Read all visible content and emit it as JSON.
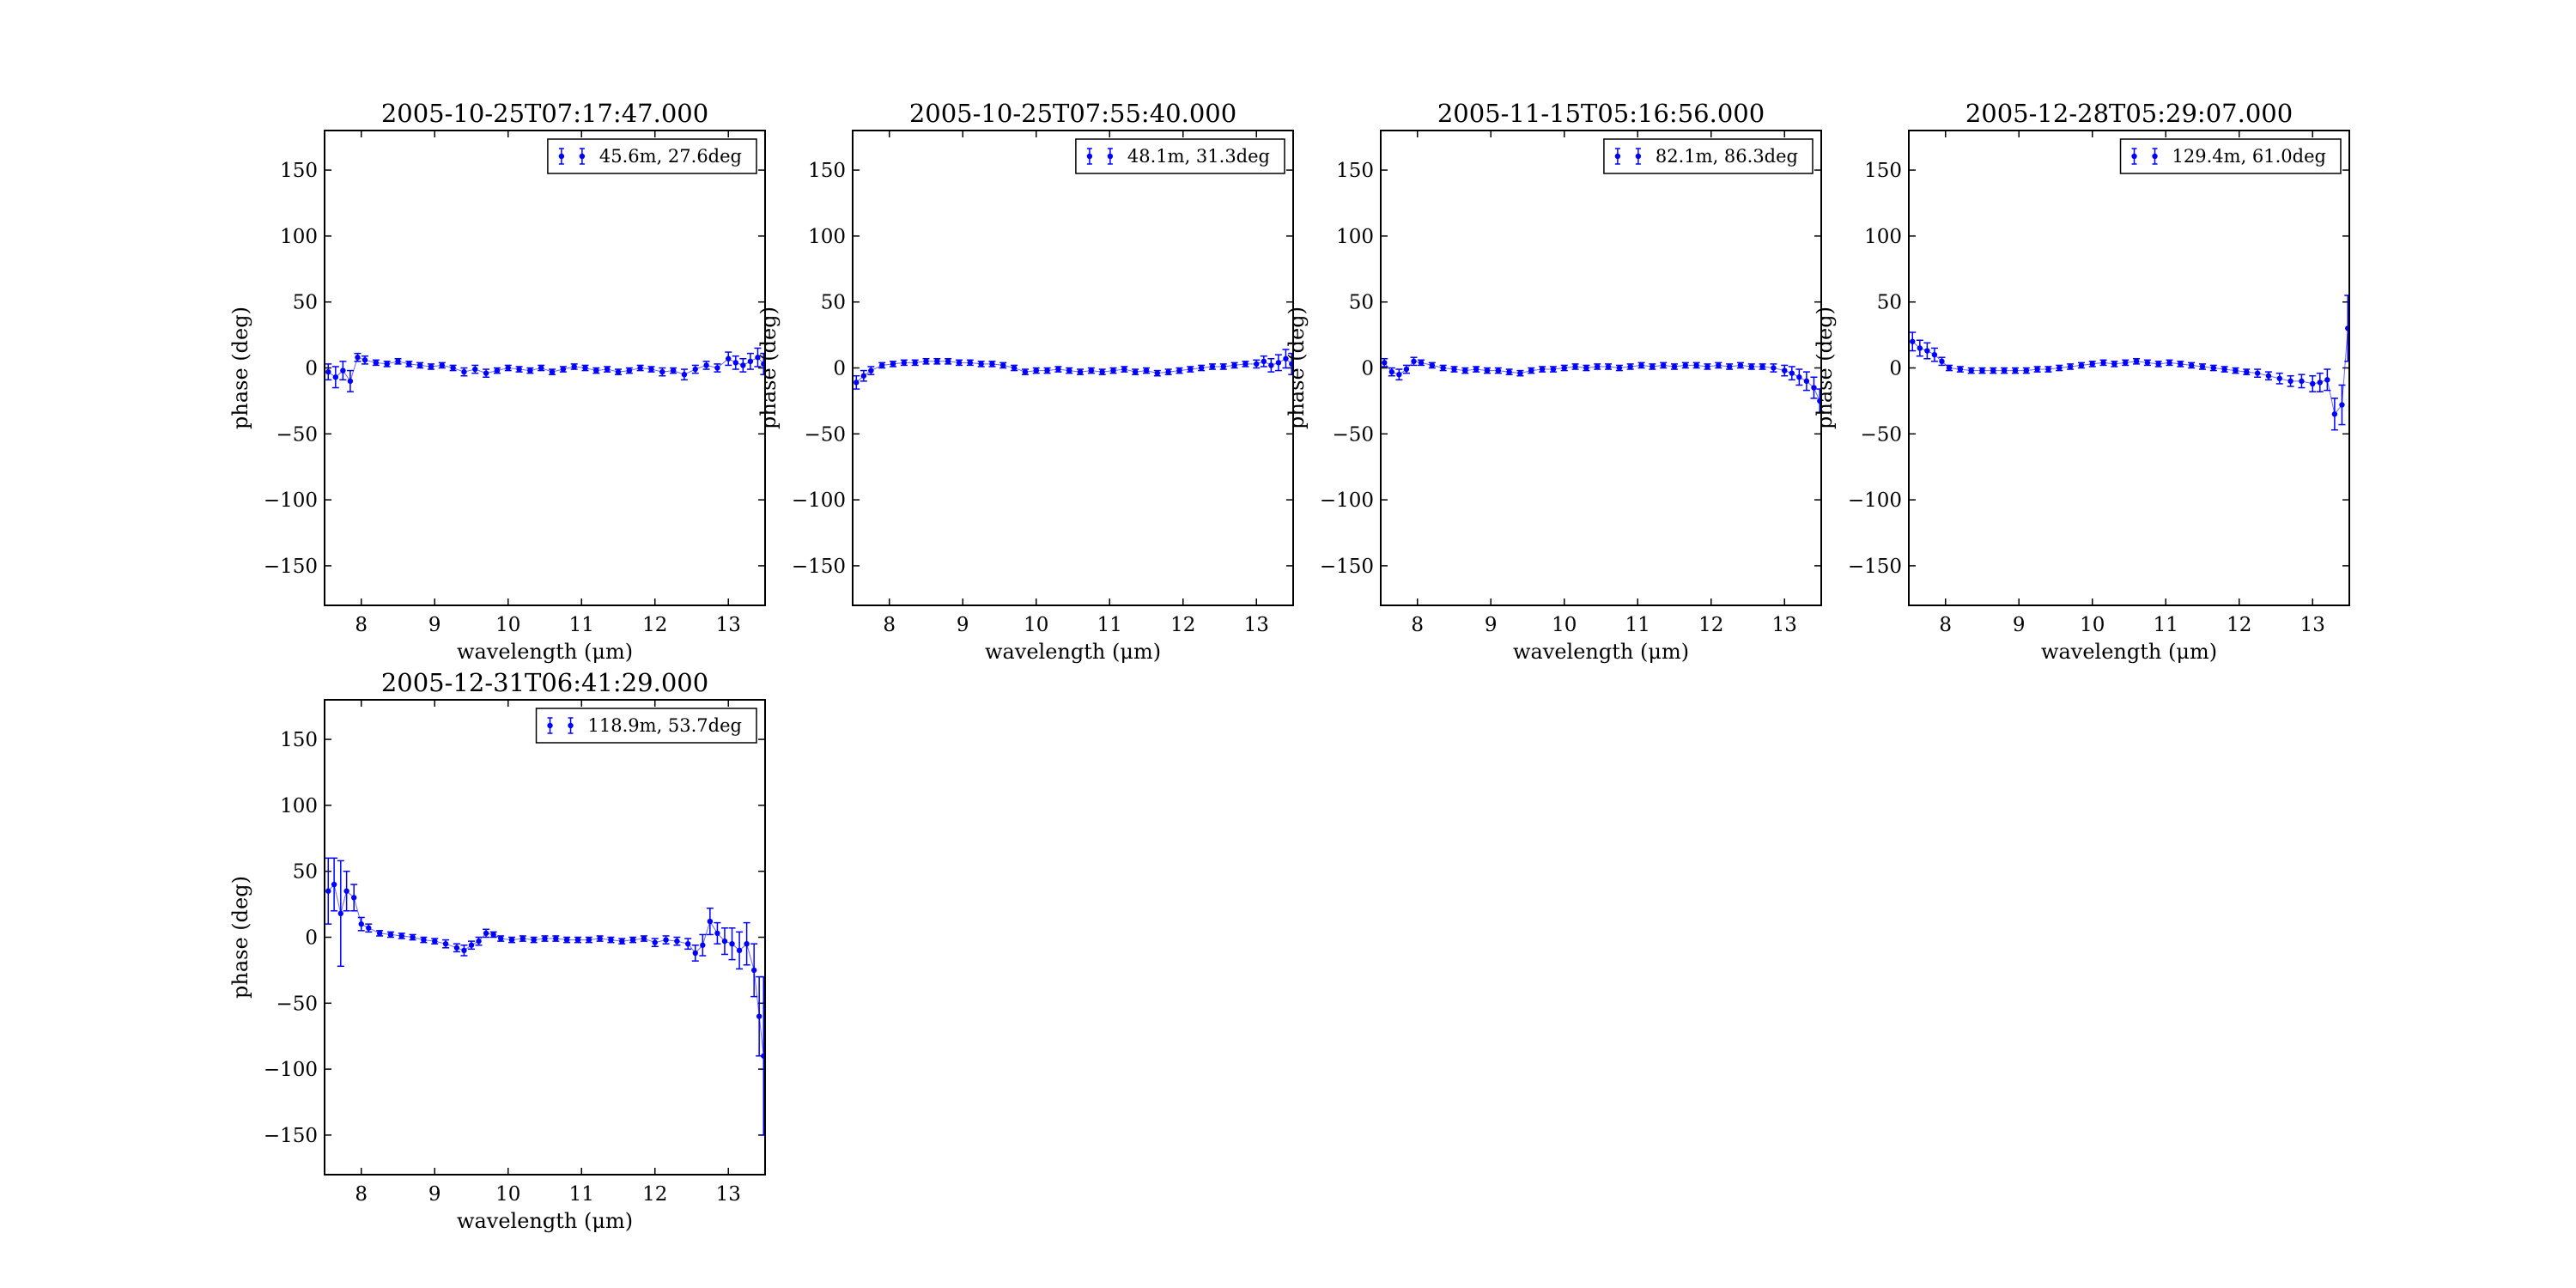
{
  "figure": {
    "marker_color": "#0000ff",
    "background": "#ffffff"
  },
  "chart_data": [
    {
      "type": "scatter",
      "title": "2005-10-25T07:17:47.000",
      "xlabel": "wavelength (μm)",
      "ylabel": "phase (deg)",
      "xlim": [
        7.5,
        13.5
      ],
      "ylim": [
        -180,
        180
      ],
      "xticks": [
        8,
        9,
        10,
        11,
        12,
        13
      ],
      "yticks": [
        150,
        100,
        50,
        0,
        -50,
        -100,
        -150
      ],
      "grid": false,
      "legend_position": "top-right",
      "series": [
        {
          "name": "45.6m, 27.6deg",
          "x": [
            7.55,
            7.65,
            7.75,
            7.85,
            7.95,
            8.05,
            8.2,
            8.35,
            8.5,
            8.65,
            8.8,
            8.95,
            9.1,
            9.25,
            9.4,
            9.55,
            9.7,
            9.85,
            10.0,
            10.15,
            10.3,
            10.45,
            10.6,
            10.75,
            10.9,
            11.05,
            11.2,
            11.35,
            11.5,
            11.65,
            11.8,
            11.95,
            12.1,
            12.25,
            12.4,
            12.55,
            12.7,
            12.85,
            13.0,
            13.1,
            13.2,
            13.3,
            13.4,
            13.48
          ],
          "y": [
            -3,
            -7,
            -2,
            -10,
            8,
            6,
            4,
            3,
            5,
            3,
            2,
            1,
            2,
            0,
            -3,
            -1,
            -4,
            -2,
            0,
            -1,
            -2,
            0,
            -3,
            -1,
            1,
            0,
            -2,
            -1,
            -3,
            -2,
            0,
            -1,
            -3,
            -2,
            -5,
            -1,
            2,
            0,
            7,
            4,
            2,
            5,
            8,
            3
          ],
          "yerr": [
            6,
            8,
            7,
            8,
            3,
            3,
            2,
            2,
            2,
            2,
            2,
            2,
            2,
            2,
            3,
            3,
            3,
            2,
            2,
            2,
            2,
            2,
            2,
            2,
            2,
            2,
            2,
            2,
            2,
            2,
            2,
            2,
            3,
            2,
            4,
            3,
            3,
            3,
            5,
            5,
            5,
            6,
            7,
            8
          ]
        }
      ]
    },
    {
      "type": "scatter",
      "title": "2005-10-25T07:55:40.000",
      "xlabel": "wavelength (μm)",
      "ylabel": "phase (deg)",
      "xlim": [
        7.5,
        13.5
      ],
      "ylim": [
        -180,
        180
      ],
      "xticks": [
        8,
        9,
        10,
        11,
        12,
        13
      ],
      "yticks": [
        150,
        100,
        50,
        0,
        -50,
        -100,
        -150
      ],
      "grid": false,
      "legend_position": "top-right",
      "series": [
        {
          "name": "48.1m, 31.3deg",
          "x": [
            7.55,
            7.65,
            7.75,
            7.9,
            8.05,
            8.2,
            8.35,
            8.5,
            8.65,
            8.8,
            8.95,
            9.1,
            9.25,
            9.4,
            9.55,
            9.7,
            9.85,
            10.0,
            10.15,
            10.3,
            10.45,
            10.6,
            10.75,
            10.9,
            11.05,
            11.2,
            11.35,
            11.5,
            11.65,
            11.8,
            11.95,
            12.1,
            12.25,
            12.4,
            12.55,
            12.7,
            12.85,
            13.0,
            13.1,
            13.2,
            13.3,
            13.4,
            13.48
          ],
          "y": [
            -11,
            -6,
            -2,
            2,
            3,
            4,
            4,
            5,
            5,
            5,
            4,
            4,
            3,
            3,
            2,
            0,
            -3,
            -2,
            -2,
            -1,
            -2,
            -3,
            -2,
            -3,
            -2,
            -1,
            -3,
            -2,
            -4,
            -3,
            -2,
            -1,
            0,
            1,
            1,
            2,
            3,
            3,
            5,
            2,
            4,
            7,
            3
          ],
          "yerr": [
            5,
            4,
            3,
            2,
            2,
            2,
            2,
            2,
            2,
            2,
            2,
            2,
            2,
            2,
            2,
            2,
            2,
            2,
            2,
            2,
            2,
            2,
            2,
            2,
            2,
            2,
            2,
            2,
            2,
            2,
            2,
            2,
            2,
            2,
            2,
            2,
            2,
            3,
            4,
            5,
            6,
            7,
            8
          ]
        }
      ]
    },
    {
      "type": "scatter",
      "title": "2005-11-15T05:16:56.000",
      "xlabel": "wavelength (μm)",
      "ylabel": "phase (deg)",
      "xlim": [
        7.5,
        13.5
      ],
      "ylim": [
        -180,
        180
      ],
      "xticks": [
        8,
        9,
        10,
        11,
        12,
        13
      ],
      "yticks": [
        150,
        100,
        50,
        0,
        -50,
        -100,
        -150
      ],
      "grid": false,
      "legend_position": "top-right",
      "series": [
        {
          "name": "82.1m, 86.3deg",
          "x": [
            7.55,
            7.65,
            7.75,
            7.85,
            7.95,
            8.05,
            8.2,
            8.35,
            8.5,
            8.65,
            8.8,
            8.95,
            9.1,
            9.25,
            9.4,
            9.55,
            9.7,
            9.85,
            10.0,
            10.15,
            10.3,
            10.45,
            10.6,
            10.75,
            10.9,
            11.05,
            11.2,
            11.35,
            11.5,
            11.65,
            11.8,
            11.95,
            12.1,
            12.25,
            12.4,
            12.55,
            12.7,
            12.85,
            13.0,
            13.1,
            13.2,
            13.3,
            13.4,
            13.48
          ],
          "y": [
            4,
            -3,
            -5,
            -1,
            5,
            4,
            2,
            0,
            -1,
            -2,
            -1,
            -2,
            -2,
            -3,
            -4,
            -2,
            -1,
            -1,
            0,
            1,
            0,
            1,
            1,
            0,
            1,
            2,
            1,
            2,
            1,
            2,
            2,
            1,
            2,
            1,
            2,
            1,
            1,
            0,
            -2,
            -4,
            -7,
            -10,
            -15,
            -25
          ],
          "yerr": [
            3,
            3,
            4,
            3,
            3,
            2,
            2,
            2,
            2,
            2,
            2,
            2,
            2,
            2,
            2,
            2,
            2,
            2,
            2,
            2,
            2,
            2,
            2,
            2,
            2,
            2,
            2,
            2,
            2,
            2,
            2,
            2,
            2,
            2,
            2,
            2,
            2,
            3,
            4,
            5,
            6,
            7,
            8,
            9
          ]
        }
      ]
    },
    {
      "type": "scatter",
      "title": "2005-12-28T05:29:07.000",
      "xlabel": "wavelength (μm)",
      "ylabel": "phase (deg)",
      "xlim": [
        7.5,
        13.5
      ],
      "ylim": [
        -180,
        180
      ],
      "xticks": [
        8,
        9,
        10,
        11,
        12,
        13
      ],
      "yticks": [
        150,
        100,
        50,
        0,
        -50,
        -100,
        -150
      ],
      "grid": false,
      "legend_position": "top-right",
      "series": [
        {
          "name": "129.4m, 61.0deg",
          "x": [
            7.55,
            7.65,
            7.75,
            7.85,
            7.95,
            8.05,
            8.2,
            8.35,
            8.5,
            8.65,
            8.8,
            8.95,
            9.1,
            9.25,
            9.4,
            9.55,
            9.7,
            9.85,
            10.0,
            10.15,
            10.3,
            10.45,
            10.6,
            10.75,
            10.9,
            11.05,
            11.2,
            11.35,
            11.5,
            11.65,
            11.8,
            11.95,
            12.1,
            12.25,
            12.4,
            12.55,
            12.7,
            12.85,
            13.0,
            13.1,
            13.2,
            13.3,
            13.4,
            13.48
          ],
          "y": [
            20,
            15,
            13,
            10,
            5,
            0,
            -1,
            -2,
            -2,
            -2,
            -2,
            -2,
            -2,
            -1,
            -1,
            0,
            1,
            2,
            3,
            4,
            3,
            4,
            5,
            4,
            3,
            4,
            3,
            2,
            1,
            0,
            -1,
            -2,
            -3,
            -4,
            -6,
            -8,
            -10,
            -10,
            -12,
            -11,
            -9,
            -35,
            -28,
            30
          ],
          "yerr": [
            7,
            6,
            6,
            5,
            3,
            2,
            2,
            2,
            2,
            2,
            2,
            2,
            2,
            2,
            2,
            2,
            2,
            2,
            2,
            2,
            2,
            2,
            2,
            2,
            2,
            2,
            2,
            2,
            2,
            2,
            2,
            2,
            2,
            3,
            3,
            4,
            4,
            5,
            6,
            7,
            8,
            12,
            15,
            25
          ]
        }
      ]
    },
    {
      "type": "scatter",
      "title": "2005-12-31T06:41:29.000",
      "xlabel": "wavelength (μm)",
      "ylabel": "phase (deg)",
      "xlim": [
        7.5,
        13.5
      ],
      "ylim": [
        -180,
        180
      ],
      "xticks": [
        8,
        9,
        10,
        11,
        12,
        13
      ],
      "yticks": [
        150,
        100,
        50,
        0,
        -50,
        -100,
        -150
      ],
      "grid": false,
      "legend_position": "top-right",
      "series": [
        {
          "name": "118.9m, 53.7deg",
          "x": [
            7.55,
            7.63,
            7.72,
            7.8,
            7.9,
            8.0,
            8.1,
            8.25,
            8.4,
            8.55,
            8.7,
            8.85,
            9.0,
            9.15,
            9.3,
            9.4,
            9.5,
            9.6,
            9.7,
            9.8,
            9.9,
            10.05,
            10.2,
            10.35,
            10.5,
            10.65,
            10.8,
            10.95,
            11.1,
            11.25,
            11.4,
            11.55,
            11.7,
            11.85,
            12.0,
            12.15,
            12.3,
            12.45,
            12.55,
            12.65,
            12.75,
            12.85,
            12.95,
            13.05,
            13.15,
            13.25,
            13.35,
            13.42,
            13.48
          ],
          "y": [
            35,
            40,
            18,
            35,
            30,
            10,
            7,
            3,
            2,
            1,
            0,
            -2,
            -3,
            -5,
            -8,
            -10,
            -6,
            -3,
            3,
            2,
            -1,
            -2,
            -1,
            -2,
            -1,
            -1,
            -2,
            -2,
            -2,
            -1,
            -2,
            -3,
            -2,
            -1,
            -4,
            -2,
            -3,
            -5,
            -12,
            -6,
            12,
            3,
            -3,
            -5,
            -10,
            -5,
            -25,
            -60,
            -90
          ],
          "yerr": [
            25,
            20,
            40,
            15,
            10,
            5,
            3,
            2,
            2,
            2,
            2,
            2,
            2,
            3,
            3,
            4,
            3,
            3,
            3,
            2,
            2,
            2,
            2,
            2,
            2,
            2,
            2,
            2,
            2,
            2,
            2,
            2,
            2,
            2,
            3,
            3,
            3,
            4,
            6,
            8,
            10,
            8,
            10,
            12,
            14,
            16,
            20,
            30,
            60
          ]
        }
      ]
    }
  ]
}
